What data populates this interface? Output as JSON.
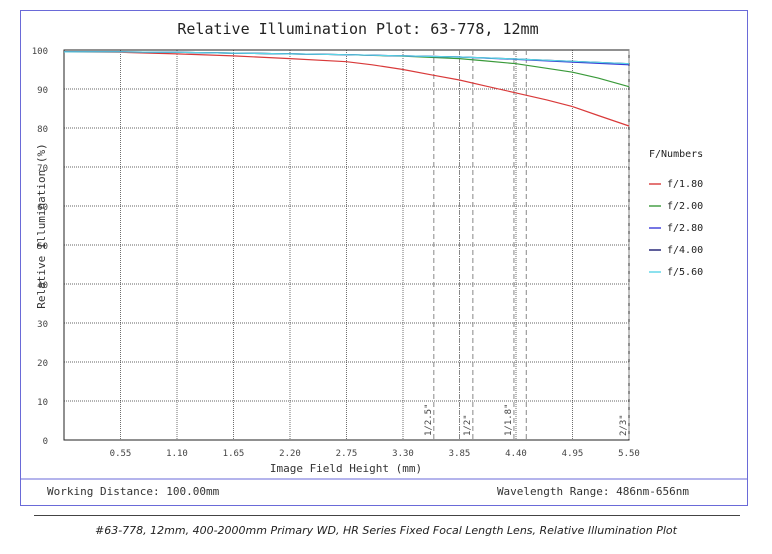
{
  "chart_data": {
    "type": "line",
    "title": "Relative Illumination Plot: 63-778, 12mm",
    "xlabel": "Image Field Height (mm)",
    "ylabel": "Relative Illumination (%)",
    "xlim": [
      0,
      5.5
    ],
    "ylim": [
      0,
      100
    ],
    "x_ticks": [
      "0.55",
      "1.10",
      "1.65",
      "2.20",
      "2.75",
      "3.30",
      "3.85",
      "4.40",
      "4.95",
      "5.50"
    ],
    "y_ticks": [
      "0",
      "10",
      "20",
      "30",
      "40",
      "50",
      "60",
      "70",
      "80",
      "90",
      "100"
    ],
    "grid": true,
    "legend_title": "F/Numbers",
    "legend_position": "right",
    "series": [
      {
        "name": "f/1.80",
        "color": "#d93a3a",
        "x": [
          0,
          0.55,
          1.1,
          1.65,
          2.2,
          2.75,
          3.0,
          3.3,
          3.6,
          3.85,
          4.1,
          4.4,
          4.7,
          4.95,
          5.2,
          5.5
        ],
        "y": [
          99.5,
          99.4,
          99.0,
          98.5,
          97.8,
          97.0,
          96.2,
          95.0,
          93.5,
          92.3,
          90.8,
          89.0,
          87.2,
          85.5,
          83.2,
          80.5
        ]
      },
      {
        "name": "f/2.00",
        "color": "#3a9a3a",
        "x": [
          0,
          0.55,
          1.1,
          1.65,
          2.2,
          2.75,
          3.3,
          3.85,
          4.1,
          4.4,
          4.7,
          4.95,
          5.2,
          5.5
        ],
        "y": [
          99.5,
          99.5,
          99.4,
          99.2,
          99.0,
          98.8,
          98.4,
          97.8,
          97.2,
          96.5,
          95.3,
          94.3,
          92.8,
          90.6
        ]
      },
      {
        "name": "f/2.80",
        "color": "#3a3ad9",
        "x": [
          0,
          0.55,
          1.1,
          1.65,
          2.2,
          2.75,
          3.3,
          3.85,
          4.4,
          4.95,
          5.5
        ],
        "y": [
          99.5,
          99.5,
          99.4,
          99.2,
          99.0,
          98.8,
          98.5,
          98.2,
          97.6,
          96.9,
          96.2
        ]
      },
      {
        "name": "f/4.00",
        "color": "#1a1a70",
        "x": [
          0,
          0.55,
          1.1,
          1.65,
          2.2,
          2.75,
          3.3,
          3.85,
          4.4,
          4.95,
          5.5
        ],
        "y": [
          99.5,
          99.5,
          99.4,
          99.2,
          99.0,
          98.8,
          98.5,
          98.2,
          97.7,
          97.1,
          96.5
        ]
      },
      {
        "name": "f/5.60",
        "color": "#5ad4e6",
        "x": [
          0,
          0.55,
          1.1,
          1.65,
          2.2,
          2.75,
          3.3,
          3.85,
          4.4,
          4.95,
          5.5
        ],
        "y": [
          99.5,
          99.5,
          99.4,
          99.2,
          99.0,
          98.8,
          98.5,
          98.2,
          97.7,
          97.1,
          96.5
        ]
      }
    ],
    "sensor_markers": [
      {
        "label": "1/2.5\"",
        "x": 3.6
      },
      {
        "label": "1/2\"",
        "x": 3.98
      },
      {
        "label": "1/1.8\"",
        "x": 4.38
      },
      {
        "label": "2/3\"",
        "x": 5.5
      }
    ],
    "extra_markers_x": [
      3.85,
      4.5
    ]
  },
  "info": {
    "working_distance": "Working Distance: 100.00mm",
    "wavelength_range": "Wavelength Range: 486nm-656nm"
  },
  "caption": "#63-778, 12mm, 400-2000mm Primary WD, HR Series Fixed Focal Length Lens, Relative Illumination Plot"
}
